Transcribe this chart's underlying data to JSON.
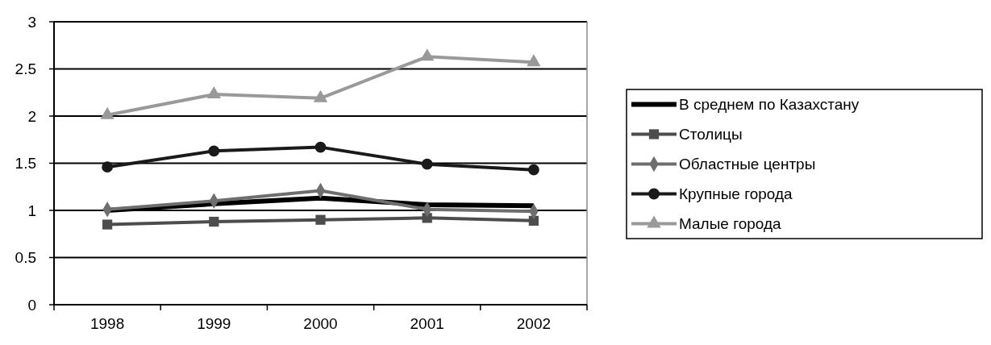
{
  "chart_data": {
    "type": "line",
    "categories": [
      "1998",
      "1999",
      "2000",
      "2001",
      "2002"
    ],
    "series": [
      {
        "name": "В среднем по Казахстану",
        "color": "#000000",
        "marker": "none",
        "values": [
          1.0,
          1.07,
          1.13,
          1.06,
          1.05
        ]
      },
      {
        "name": "Столицы",
        "color": "#4d4d4d",
        "marker": "square",
        "values": [
          0.85,
          0.88,
          0.9,
          0.92,
          0.89
        ]
      },
      {
        "name": "Областные центры",
        "color": "#6e6e6e",
        "marker": "diamond",
        "values": [
          1.01,
          1.1,
          1.21,
          1.01,
          0.99
        ]
      },
      {
        "name": "Крупные города",
        "color": "#1a1a1a",
        "marker": "circle",
        "values": [
          1.46,
          1.63,
          1.67,
          1.49,
          1.43
        ]
      },
      {
        "name": "Малые города",
        "color": "#999999",
        "marker": "triangle",
        "values": [
          2.01,
          2.23,
          2.19,
          2.63,
          2.57
        ]
      }
    ],
    "ylim": [
      0,
      3
    ],
    "yticks": [
      0,
      0.5,
      1,
      1.5,
      2,
      2.5,
      3
    ],
    "grid": "y",
    "legend": "right"
  }
}
